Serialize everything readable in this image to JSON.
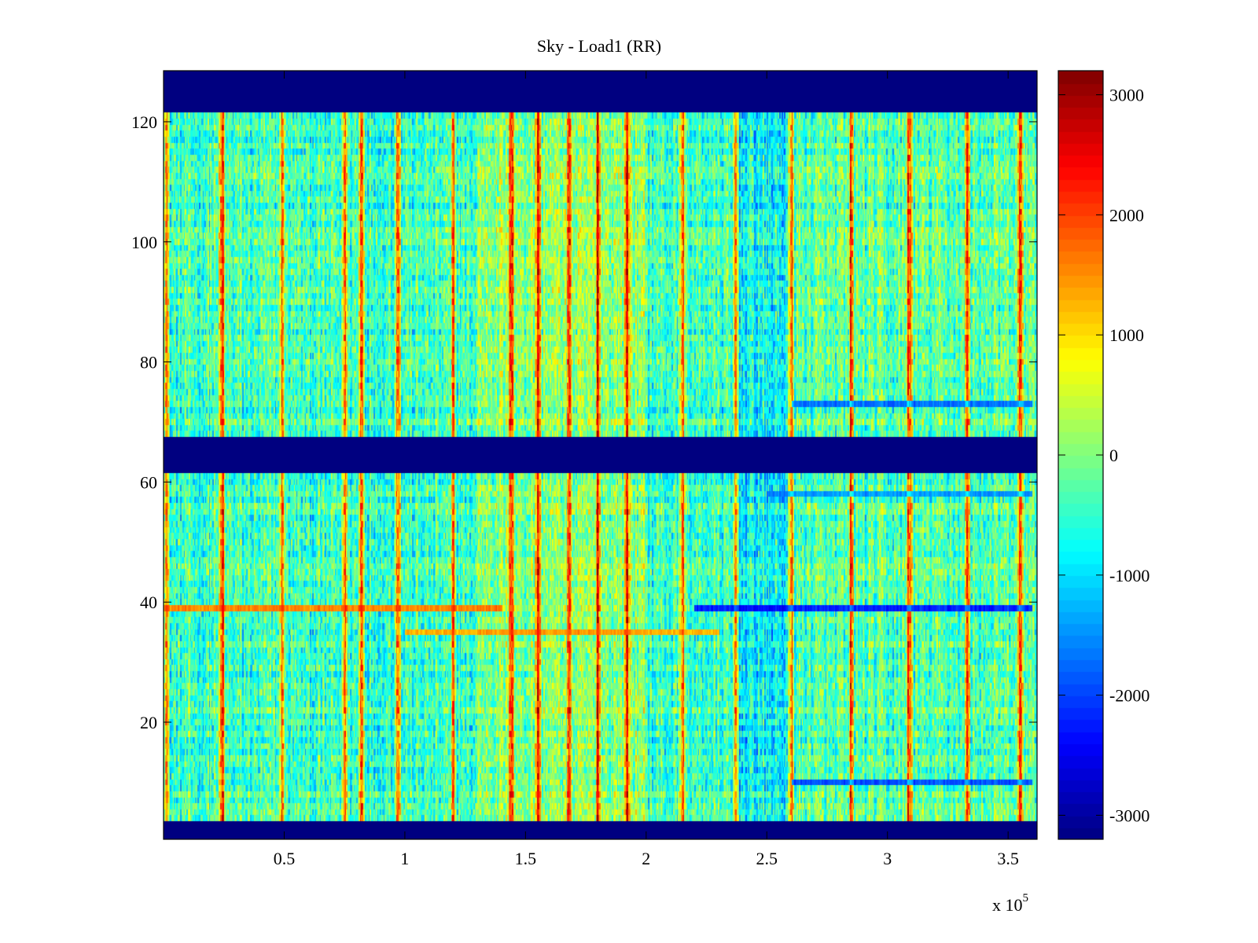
{
  "chart_data": {
    "type": "heatmap",
    "title": "Sky - Load1 (RR)",
    "xlabel": "",
    "ylabel": "",
    "x_multiplier_label": "x 10",
    "x_multiplier_exponent": "5",
    "xlim": [
      0,
      3.62
    ],
    "ylim": [
      0.5,
      128.5
    ],
    "x_ticks": [
      0.5,
      1,
      1.5,
      2,
      2.5,
      3,
      3.5
    ],
    "x_tick_labels": [
      "0.5",
      "1",
      "1.5",
      "2",
      "2.5",
      "3",
      "3.5"
    ],
    "y_ticks": [
      20,
      40,
      60,
      80,
      100,
      120
    ],
    "y_tick_labels": [
      "20",
      "40",
      "60",
      "80",
      "100",
      "120"
    ],
    "rows": 128,
    "colormap": "jet",
    "clim": [
      -3200,
      3200
    ],
    "colorbar": {
      "ticks": [
        -3000,
        -2000,
        -1000,
        0,
        1000,
        2000,
        3000
      ],
      "tick_labels": [
        "-3000",
        "-2000",
        "-1000",
        "0",
        "1000",
        "2000",
        "3000"
      ],
      "location": "right"
    },
    "masked_row_ranges": [
      [
        1,
        3
      ],
      [
        62,
        67
      ],
      [
        122,
        128
      ]
    ],
    "masked_value": -3200,
    "vertical_stripes_x": [
      0.01,
      0.24,
      0.49,
      0.75,
      0.82,
      0.97,
      1.2,
      1.44,
      1.55,
      1.68,
      1.8,
      1.92,
      2.15,
      2.37,
      2.6,
      2.85,
      3.09,
      3.33,
      3.55
    ],
    "strong_rows": [
      {
        "row": 39,
        "value": -2400,
        "x_from": 2.2,
        "x_to": 3.6
      },
      {
        "row": 39,
        "value": 1800,
        "x_from": 0.0,
        "x_to": 1.4
      },
      {
        "row": 10,
        "value": -2000,
        "x_from": 2.6,
        "x_to": 3.6
      },
      {
        "row": 73,
        "value": -1800,
        "x_from": 2.6,
        "x_to": 3.6
      },
      {
        "row": 58,
        "value": -1500,
        "x_from": 2.5,
        "x_to": 3.6
      },
      {
        "row": 35,
        "value": 1600,
        "x_from": 1.0,
        "x_to": 2.3
      }
    ],
    "warm_region_x": [
      1.3,
      2.0
    ],
    "cool_region_x": [
      2.35,
      2.6
    ]
  }
}
